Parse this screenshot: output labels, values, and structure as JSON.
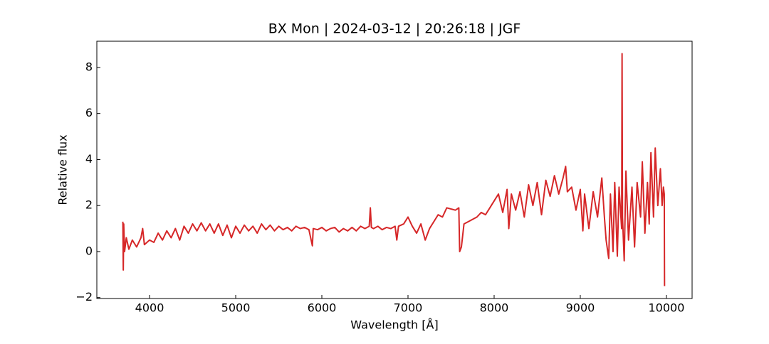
{
  "chart_data": {
    "type": "line",
    "title": "BX Mon | 2024-03-12 | 20:26:18 | JGF",
    "x_label": "Wavelength [Å]",
    "y_label": "Relative flux",
    "color": "#d62728",
    "xlim": [
      3388,
      10298
    ],
    "ylim": [
      -2.04,
      9.14
    ],
    "xticks": [
      4000,
      5000,
      6000,
      7000,
      8000,
      9000,
      10000
    ],
    "yticks": [
      {
        "value": -2,
        "label": "−2"
      },
      0,
      2,
      4,
      6,
      8
    ],
    "x": [
      3690,
      3695,
      3700,
      3710,
      3730,
      3760,
      3800,
      3850,
      3900,
      3920,
      3940,
      4000,
      4050,
      4100,
      4150,
      4200,
      4250,
      4300,
      4350,
      4400,
      4450,
      4500,
      4550,
      4600,
      4650,
      4700,
      4750,
      4800,
      4850,
      4900,
      4950,
      5000,
      5050,
      5100,
      5150,
      5200,
      5250,
      5300,
      5350,
      5400,
      5450,
      5500,
      5550,
      5600,
      5650,
      5700,
      5750,
      5800,
      5850,
      5890,
      5900,
      5950,
      6000,
      6050,
      6100,
      6150,
      6200,
      6250,
      6300,
      6350,
      6400,
      6450,
      6500,
      6550,
      6563,
      6575,
      6600,
      6650,
      6700,
      6750,
      6800,
      6850,
      6870,
      6890,
      6950,
      7000,
      7050,
      7100,
      7150,
      7200,
      7250,
      7300,
      7350,
      7400,
      7450,
      7500,
      7550,
      7590,
      7600,
      7620,
      7650,
      7700,
      7750,
      7800,
      7850,
      7900,
      7950,
      8000,
      8050,
      8100,
      8150,
      8170,
      8200,
      8250,
      8300,
      8350,
      8400,
      8450,
      8500,
      8550,
      8600,
      8650,
      8700,
      8750,
      8800,
      8830,
      8850,
      8900,
      8950,
      9000,
      9030,
      9050,
      9100,
      9150,
      9200,
      9250,
      9280,
      9300,
      9330,
      9350,
      9380,
      9400,
      9430,
      9450,
      9480,
      9485,
      9490,
      9510,
      9530,
      9560,
      9600,
      9630,
      9660,
      9700,
      9720,
      9750,
      9780,
      9800,
      9820,
      9850,
      9870,
      9900,
      9930,
      9950,
      9965,
      9975,
      9978
    ],
    "values": [
      1.3,
      -0.8,
      1.2,
      0.0,
      0.6,
      0.1,
      0.5,
      0.2,
      0.6,
      1.0,
      0.3,
      0.5,
      0.4,
      0.8,
      0.5,
      0.9,
      0.6,
      1.0,
      0.5,
      1.1,
      0.8,
      1.2,
      0.9,
      1.25,
      0.9,
      1.2,
      0.8,
      1.2,
      0.7,
      1.15,
      0.6,
      1.1,
      0.8,
      1.15,
      0.9,
      1.1,
      0.8,
      1.2,
      0.95,
      1.15,
      0.9,
      1.1,
      0.95,
      1.05,
      0.9,
      1.1,
      1.0,
      1.05,
      0.95,
      0.25,
      1.0,
      0.95,
      1.05,
      0.9,
      1.0,
      1.05,
      0.85,
      1.0,
      0.9,
      1.05,
      0.9,
      1.1,
      1.0,
      1.1,
      1.9,
      1.05,
      1.0,
      1.1,
      0.95,
      1.05,
      1.0,
      1.1,
      0.5,
      1.1,
      1.2,
      1.5,
      1.1,
      0.8,
      1.2,
      0.5,
      1.0,
      1.3,
      1.6,
      1.5,
      1.9,
      1.85,
      1.8,
      1.9,
      0.0,
      0.2,
      1.2,
      1.3,
      1.4,
      1.5,
      1.7,
      1.6,
      1.9,
      2.2,
      2.5,
      1.7,
      2.7,
      1.0,
      2.5,
      1.8,
      2.6,
      1.5,
      2.9,
      2.0,
      3.0,
      1.6,
      3.1,
      2.4,
      3.3,
      2.5,
      3.2,
      3.7,
      2.6,
      2.8,
      1.8,
      2.7,
      0.9,
      2.5,
      1.0,
      2.6,
      1.5,
      3.2,
      1.5,
      0.5,
      -0.3,
      2.5,
      0.0,
      3.0,
      -0.2,
      2.8,
      1.0,
      8.6,
      1.5,
      -0.4,
      3.5,
      0.5,
      2.8,
      0.2,
      3.0,
      1.5,
      3.9,
      0.8,
      3.0,
      1.2,
      4.3,
      1.5,
      4.5,
      2.0,
      3.6,
      2.0,
      2.8,
      2.5,
      -1.5
    ]
  }
}
